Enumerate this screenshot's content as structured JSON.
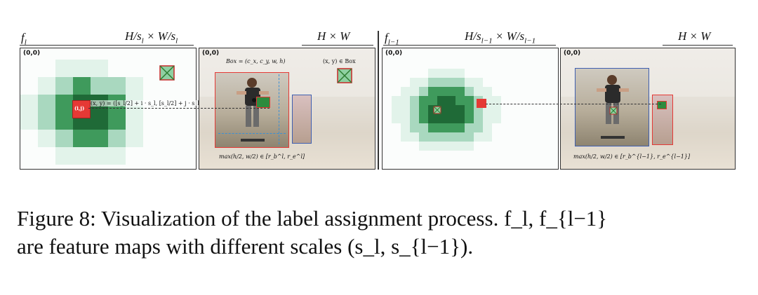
{
  "header": {
    "f_l": "f_l",
    "dims_l": "H/s_l × W/s_l",
    "hw_1": "H × W",
    "f_lm1": "f_{l−1}",
    "dims_lm1": "H/s_{l−1} × W/s_{l−1}",
    "hw_2": "H × W"
  },
  "panels": {
    "origin": "(0,0)",
    "cell_label": "(i,j)",
    "mapping_formula": "(x, y) = ([s_l/2] + i · s_l, [s_l/2] + j · s_l)",
    "box_formula": "Box = (c_x, c_y, w, h)",
    "in_box": "(x, y) ∈ Box",
    "max_cond_l": "max(h/2, w/2) ∈ [r_b^l, r_e^l]",
    "max_cond_lm1": "max(h/2, w/2) ∈ [r_b^{l−1}, r_e^{l−1}]"
  },
  "caption": {
    "line1": "Figure 8: Visualization of the label assignment process. f_l, f_{l−1}",
    "line2": "are feature maps with different scales (s_l, s_{l−1})."
  },
  "colors": {
    "heat_dark": "#1f6a37",
    "heat_mid": "#3f9a5c",
    "heat_light": "#a9d8bf",
    "heat_faint": "#e2f3ea",
    "assign_red": "#e53935",
    "box_blue": "#3f5fb0"
  }
}
